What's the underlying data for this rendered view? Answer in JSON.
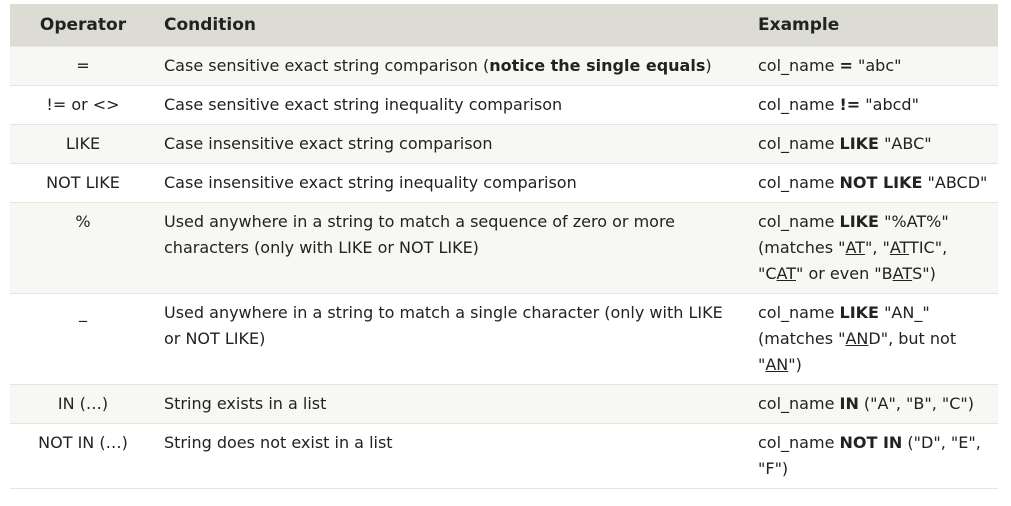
{
  "headers": {
    "operator": "Operator",
    "condition": "Condition",
    "example": "Example"
  },
  "rows": [
    {
      "operator": "=",
      "condition_pre": "Case sensitive exact string comparison (",
      "condition_bold": "notice the single equals",
      "condition_post": ")",
      "ex_col": "col_name ",
      "ex_op": "=",
      "ex_val": " \"abc\""
    },
    {
      "operator": "!= or <>",
      "condition": "Case sensitive exact string inequality comparison",
      "ex_col": "col_name ",
      "ex_op": "!=",
      "ex_val": " \"abcd\""
    },
    {
      "operator": "LIKE",
      "condition": "Case insensitive exact string comparison",
      "ex_col": "col_name ",
      "ex_op": "LIKE",
      "ex_val": " \"ABC\""
    },
    {
      "operator": "NOT LIKE",
      "condition": "Case insensitive exact string inequality comparison",
      "ex_col": "col_name ",
      "ex_op": "NOT LIKE",
      "ex_val": " \"ABCD\""
    },
    {
      "operator": "%",
      "condition": "Used anywhere in a string to match a sequence of zero or more characters (only with LIKE or NOT LIKE)",
      "ex_col": "col_name ",
      "ex_op": "LIKE",
      "ex_val": " \"%AT%\"",
      "matches": {
        "p1": " (matches \"",
        "u1": "AT",
        "p2": "\", \"",
        "u2": "AT",
        "p3": "TIC\", \"C",
        "u3": "AT",
        "p4": "\" or even \"B",
        "u4": "AT",
        "p5": "S\")"
      }
    },
    {
      "operator": "_",
      "condition": "Used anywhere in a string to match a single character (only with LIKE or NOT LIKE)",
      "ex_col": "col_name ",
      "ex_op": "LIKE",
      "ex_val": " \"AN_\"",
      "matches": {
        "p1": " (matches \"",
        "u1": "AN",
        "p2": "D\", but not \"",
        "u2": "AN",
        "p3": "\")"
      }
    },
    {
      "operator": "IN (…)",
      "condition": "String exists in a list",
      "ex_col": "col_name ",
      "ex_op": "IN",
      "ex_val": " (\"A\", \"B\", \"C\")"
    },
    {
      "operator": "NOT IN (…)",
      "condition": "String does not exist in a list",
      "ex_col": "col_name ",
      "ex_op": "NOT IN",
      "ex_val": " (\"D\", \"E\", \"F\")"
    }
  ]
}
